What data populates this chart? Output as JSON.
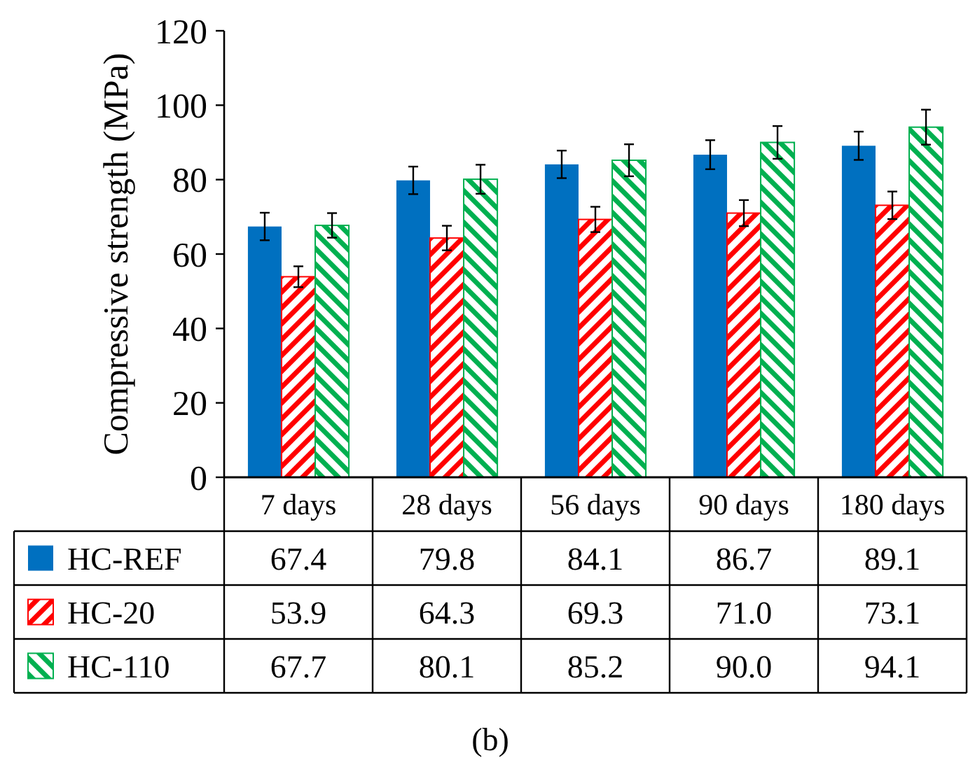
{
  "chart_data": {
    "type": "bar",
    "ylabel": "Compressive strength (MPa)",
    "categories": [
      "7 days",
      "28 days",
      "56 days",
      "90 days",
      "180 days"
    ],
    "series": [
      {
        "name": "HC-REF",
        "color": "#0070c0",
        "values": [
          67.4,
          79.8,
          84.1,
          86.7,
          89.1
        ],
        "errors": [
          3.7,
          3.7,
          3.7,
          3.9,
          3.8
        ]
      },
      {
        "name": "HC-20",
        "color": "#ff0000",
        "values": [
          53.9,
          64.3,
          69.3,
          71.0,
          73.1
        ],
        "errors": [
          2.8,
          3.3,
          3.4,
          3.5,
          3.7
        ],
        "value_labels": [
          "53.9",
          "64.3",
          "69.3",
          "71.0",
          "73.1"
        ]
      },
      {
        "name": "HC-110",
        "color": "#00b050",
        "values": [
          67.7,
          80.1,
          85.2,
          90.0,
          94.1
        ],
        "errors": [
          3.3,
          3.9,
          4.3,
          4.4,
          4.7
        ],
        "value_labels": [
          "67.7",
          "80.1",
          "85.2",
          "90.0",
          "94.1"
        ]
      }
    ],
    "data_labels": true,
    "ylim": [
      0,
      120
    ],
    "yticks": [
      0,
      20,
      40,
      60,
      80,
      100,
      120
    ],
    "grid": false,
    "legend": "bottom",
    "annotations": [
      "(b)"
    ]
  }
}
